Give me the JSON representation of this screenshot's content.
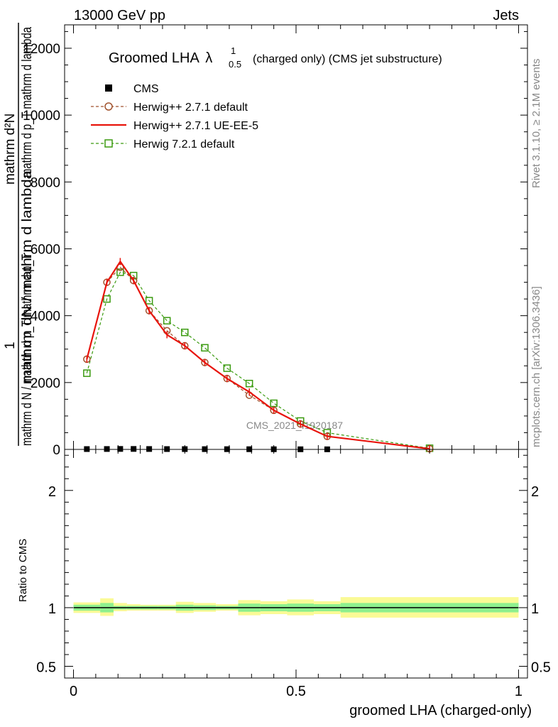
{
  "header": {
    "left": "13000 GeV pp",
    "right": "Jets"
  },
  "side_labels": {
    "rivet": "Rivet 3.1.10, ≥ 2.1M events",
    "mcplots": "mcplots.cern.ch [arXiv:1306.3436]"
  },
  "colors": {
    "cms": "#000000",
    "herwig_default": "#a0522d",
    "herwig_ueee5": "#e8140c",
    "herwig721": "#3a9a0f",
    "band_inner": "#8ef08e",
    "band_outer": "#fafa96"
  },
  "chart_data": [
    {
      "type": "line",
      "title": "Groomed LHA",
      "title_symbol": "λ",
      "title_sup": "1",
      "title_sub": "0.5",
      "title_suffix": "(charged only) (CMS jet substructure)",
      "ylabel_num": "mathrm dN / mathrm d lambda",
      "ylabel_den": "mathrm d N / mathrm d p_T  mathrm d p_T",
      "ylabel_one": "1",
      "ylabel_top": "mathrm d²N",
      "ylabel_topden": "mathrm d p_T mathrm d lambda",
      "ylim": [
        0,
        12700
      ],
      "xlim": [
        -0.02,
        1.02
      ],
      "yticks": [
        0,
        2000,
        4000,
        6000,
        8000,
        10000,
        12000
      ],
      "ytick_labels": [
        "0",
        "2000",
        "4000",
        "6000",
        "8000",
        "10000",
        "12000"
      ],
      "watermark": "CMS_2021_I1920187",
      "legend": [
        {
          "label": "CMS",
          "key": "cms"
        },
        {
          "label": "Herwig++ 2.7.1 default",
          "key": "herwig_default"
        },
        {
          "label": "Herwig++ 2.7.1 UE-EE-5",
          "key": "herwig_ueee5"
        },
        {
          "label": "Herwig 7.2.1 default",
          "key": "herwig721"
        }
      ],
      "series": [
        {
          "name": "CMS",
          "key": "cms",
          "x": [
            0.03,
            0.075,
            0.105,
            0.135,
            0.17,
            0.21,
            0.25,
            0.295,
            0.345,
            0.395,
            0.45,
            0.51,
            0.57
          ],
          "values": [
            10,
            12,
            14,
            14,
            12,
            10,
            9,
            8,
            7,
            6,
            5,
            4,
            3
          ]
        },
        {
          "name": "Herwig++ 2.7.1 default",
          "key": "herwig_default",
          "x": [
            0.03,
            0.075,
            0.105,
            0.135,
            0.17,
            0.21,
            0.25,
            0.295,
            0.345,
            0.395,
            0.45,
            0.51,
            0.57,
            0.8
          ],
          "values": [
            2700,
            5000,
            5450,
            5050,
            4150,
            3550,
            3100,
            2600,
            2120,
            1620,
            1170,
            760,
            390,
            20
          ]
        },
        {
          "name": "Herwig++ 2.7.1 UE-EE-5",
          "key": "herwig_ueee5",
          "x": [
            0.03,
            0.075,
            0.105,
            0.135,
            0.17,
            0.21,
            0.25,
            0.295,
            0.345,
            0.395,
            0.45,
            0.51,
            0.57,
            0.8
          ],
          "values": [
            2700,
            5000,
            5620,
            5050,
            4150,
            3430,
            3100,
            2600,
            2120,
            1720,
            1170,
            760,
            390,
            20
          ]
        },
        {
          "name": "Herwig 7.2.1 default",
          "key": "herwig721",
          "x": [
            0.03,
            0.075,
            0.105,
            0.135,
            0.17,
            0.21,
            0.25,
            0.295,
            0.345,
            0.395,
            0.45,
            0.51,
            0.57,
            0.8
          ],
          "values": [
            2280,
            4500,
            5300,
            5200,
            4450,
            3850,
            3500,
            3040,
            2430,
            1970,
            1380,
            850,
            500,
            35
          ]
        }
      ]
    },
    {
      "type": "area",
      "ylabel": "Ratio to CMS",
      "xlabel": "groomed LHA (charged-only)",
      "ylim": [
        0.4,
        2.35
      ],
      "xlim": [
        -0.02,
        1.02
      ],
      "yticks": [
        0.5,
        1,
        2
      ],
      "ytick_labels": [
        "0.5",
        "1",
        "2"
      ],
      "xticks": [
        0,
        0.5,
        1
      ],
      "xtick_labels": [
        "0",
        "0.5",
        "1"
      ],
      "reference": 1,
      "bins": [
        {
          "x0": 0.0,
          "x1": 0.06,
          "inner": [
            0.975,
            1.025
          ],
          "outer": [
            0.955,
            1.045
          ]
        },
        {
          "x0": 0.06,
          "x1": 0.09,
          "inner": [
            0.96,
            1.04
          ],
          "outer": [
            0.93,
            1.08
          ]
        },
        {
          "x0": 0.09,
          "x1": 0.12,
          "inner": [
            0.985,
            1.015
          ],
          "outer": [
            0.97,
            1.04
          ]
        },
        {
          "x0": 0.12,
          "x1": 0.15,
          "inner": [
            0.985,
            1.015
          ],
          "outer": [
            0.975,
            1.03
          ]
        },
        {
          "x0": 0.15,
          "x1": 0.19,
          "inner": [
            0.985,
            1.015
          ],
          "outer": [
            0.975,
            1.025
          ]
        },
        {
          "x0": 0.19,
          "x1": 0.23,
          "inner": [
            0.985,
            1.015
          ],
          "outer": [
            0.975,
            1.025
          ]
        },
        {
          "x0": 0.23,
          "x1": 0.27,
          "inner": [
            0.975,
            1.025
          ],
          "outer": [
            0.955,
            1.05
          ]
        },
        {
          "x0": 0.27,
          "x1": 0.32,
          "inner": [
            0.98,
            1.02
          ],
          "outer": [
            0.965,
            1.04
          ]
        },
        {
          "x0": 0.32,
          "x1": 0.37,
          "inner": [
            0.985,
            1.015
          ],
          "outer": [
            0.975,
            1.03
          ]
        },
        {
          "x0": 0.37,
          "x1": 0.42,
          "inner": [
            0.965,
            1.035
          ],
          "outer": [
            0.935,
            1.065
          ]
        },
        {
          "x0": 0.42,
          "x1": 0.48,
          "inner": [
            0.97,
            1.03
          ],
          "outer": [
            0.945,
            1.055
          ]
        },
        {
          "x0": 0.48,
          "x1": 0.54,
          "inner": [
            0.965,
            1.035
          ],
          "outer": [
            0.935,
            1.07
          ]
        },
        {
          "x0": 0.54,
          "x1": 0.6,
          "inner": [
            0.97,
            1.03
          ],
          "outer": [
            0.945,
            1.055
          ]
        },
        {
          "x0": 0.6,
          "x1": 1.0,
          "inner": [
            0.96,
            1.04
          ],
          "outer": [
            0.915,
            1.09
          ]
        }
      ]
    }
  ]
}
